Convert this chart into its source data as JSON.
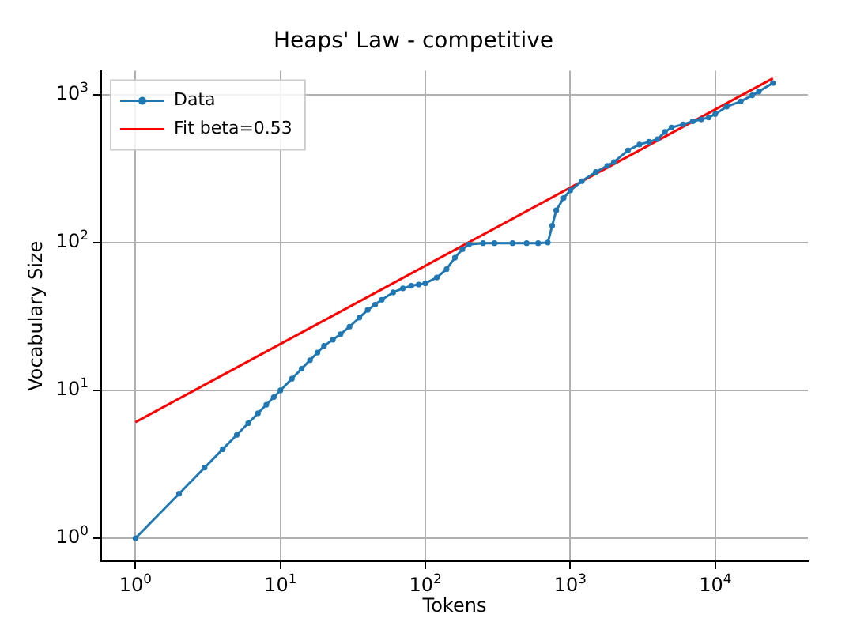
{
  "chart_data": {
    "type": "line",
    "title": "Heaps' Law - competitive",
    "xlabel": "Tokens",
    "ylabel": "Vocabulary Size",
    "log": "xy",
    "grid": true,
    "legend": "top left",
    "xlim": [
      0.58,
      43600
    ],
    "ylim": [
      0.7,
      1450
    ],
    "xticks": [
      {
        "value": 1,
        "label": "10$^{0}$"
      },
      {
        "value": 10,
        "label": "10$^{1}$"
      },
      {
        "value": 100,
        "label": "10$^{2}$"
      },
      {
        "value": 1000,
        "label": "10$^{3}$"
      },
      {
        "value": 10000,
        "label": "10$^{4}$"
      }
    ],
    "yticks": [
      {
        "value": 1,
        "label": "10$^{0}$"
      },
      {
        "value": 10,
        "label": "10$^{1}$"
      },
      {
        "value": 100,
        "label": "10$^{2}$"
      },
      {
        "value": 1000,
        "label": "10$^{3}$"
      }
    ],
    "series": [
      {
        "name": "Data",
        "color": "#1f77b4",
        "marker": "circle",
        "line_style": "solid",
        "x": [
          1,
          2,
          3,
          4,
          5,
          6,
          7,
          8,
          9,
          10,
          12,
          14,
          16,
          18,
          20,
          23,
          26,
          30,
          35,
          40,
          45,
          50,
          60,
          70,
          80,
          90,
          100,
          120,
          140,
          160,
          180,
          200,
          250,
          300,
          400,
          500,
          600,
          700,
          750,
          800,
          900,
          1000,
          1200,
          1500,
          1800,
          2000,
          2500,
          3000,
          3500,
          4000,
          4500,
          5000,
          6000,
          7000,
          8000,
          9000,
          10000,
          12000,
          15000,
          18000,
          20000,
          25000
        ],
        "values": [
          1,
          2,
          3,
          4,
          5,
          6,
          7,
          8,
          9,
          10,
          12,
          14,
          16,
          18,
          20,
          22,
          24,
          27,
          31,
          35,
          38,
          41,
          46,
          49,
          51,
          52,
          53,
          58,
          66,
          79,
          90,
          97,
          99,
          99,
          99,
          99,
          99,
          100,
          130,
          165,
          200,
          225,
          260,
          300,
          330,
          350,
          420,
          460,
          480,
          500,
          560,
          600,
          630,
          660,
          680,
          700,
          740,
          830,
          900,
          990,
          1050,
          1200
        ]
      },
      {
        "name": "Fit beta=0.53",
        "color": "#ff0000",
        "marker": "none",
        "line_style": "solid",
        "x": [
          1,
          25000
        ],
        "values": [
          6.1,
          1290
        ]
      }
    ]
  }
}
